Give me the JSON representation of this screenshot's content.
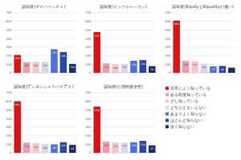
{
  "chart_data": [
    {
      "type": "bar",
      "title": "認知度(ダイバーシティ)",
      "categories": [
        "非常によく知っている",
        "ある程度知っている",
        "少し知っている",
        "どちらともいえない",
        "あまりよく知らない",
        "ほとんど知らない",
        "全く知らない"
      ],
      "values": [
        208,
        125,
        128,
        130,
        275,
        242,
        104
      ],
      "colors": [
        "#e01010",
        "#f29aa6",
        "#f6c4cd",
        "#dcd6ec",
        "#4a6fe0",
        "#2646b0",
        "#1e2b6e"
      ],
      "ylim": [
        0,
        700
      ],
      "yticks": [
        0,
        100,
        200,
        300,
        400,
        500,
        600,
        700
      ],
      "grid": true,
      "data_labels": true,
      "tick_labels": "y"
    },
    {
      "type": "bar",
      "title": "認知度(インクルージョン)",
      "categories": [
        "非常によく知っている",
        "ある程度知っている",
        "少し知っている",
        "どちらともいえない",
        "あまりよく知らない",
        "ほとんど知らない",
        "全く知らない"
      ],
      "values": [
        475,
        110,
        100,
        105,
        140,
        148,
        78
      ],
      "colors": [
        "#e01010",
        "#f29aa6",
        "#f6c4cd",
        "#dcd6ec",
        "#4a6fe0",
        "#2646b0",
        "#1e2b6e"
      ],
      "ylim": [
        0,
        700
      ],
      "yticks": [
        0,
        100,
        200,
        300,
        400,
        500,
        600,
        700
      ],
      "grid": true,
      "data_labels": true,
      "tick_labels": "y"
    },
    {
      "type": "bar",
      "title": "認知度(EquityとEqualityの違い)",
      "categories": [
        "非常によく知っている",
        "ある程度知っている",
        "少し知っている",
        "どちらともいえない",
        "あまりよく知らない",
        "ほとんど知らない",
        "全く知らない"
      ],
      "values": [
        609,
        138,
        134,
        108,
        75,
        80,
        60
      ],
      "colors": [
        "#e01010",
        "#f29aa6",
        "#f6c4cd",
        "#dcd6ec",
        "#4a6fe0",
        "#2646b0",
        "#1e2b6e"
      ],
      "ylim": [
        0,
        700
      ],
      "yticks": [
        0,
        100,
        200,
        300,
        400,
        500,
        600,
        700
      ],
      "grid": true,
      "data_labels": true,
      "tick_labels": "y"
    },
    {
      "type": "bar",
      "title": "認知度(アンコンシャスバイアス)",
      "categories": [
        "非常によく知っている",
        "ある程度知っている",
        "少し知っている",
        "どちらともいえない",
        "あまりよく知らない",
        "ほとんど知らない",
        "全く知らない"
      ],
      "values": [
        601,
        118,
        110,
        100,
        98,
        124,
        92
      ],
      "colors": [
        "#e01010",
        "#f29aa6",
        "#f6c4cd",
        "#dcd6ec",
        "#4a6fe0",
        "#2646b0",
        "#1e2b6e"
      ],
      "ylim": [
        0,
        700
      ],
      "yticks": [
        0,
        100,
        200,
        300,
        400,
        500,
        600,
        700
      ],
      "grid": true,
      "data_labels": true,
      "tick_labels": "y"
    },
    {
      "type": "bar",
      "title": "認知度(心理的安全性)",
      "categories": [
        "非常によく知っている",
        "ある程度知っている",
        "少し知っている",
        "どちらともいえない",
        "あまりよく知らない",
        "ほとんど知らない",
        "全く知らない"
      ],
      "values": [
        539,
        129,
        118,
        122,
        123,
        139,
        87
      ],
      "colors": [
        "#e01010",
        "#f29aa6",
        "#f6c4cd",
        "#dcd6ec",
        "#4a6fe0",
        "#2646b0",
        "#1e2b6e"
      ],
      "ylim": [
        0,
        700
      ],
      "yticks": [
        0,
        100,
        200,
        300,
        400,
        500,
        600,
        700
      ],
      "grid": true,
      "data_labels": true,
      "tick_labels": "y",
      "legend": "right"
    }
  ]
}
